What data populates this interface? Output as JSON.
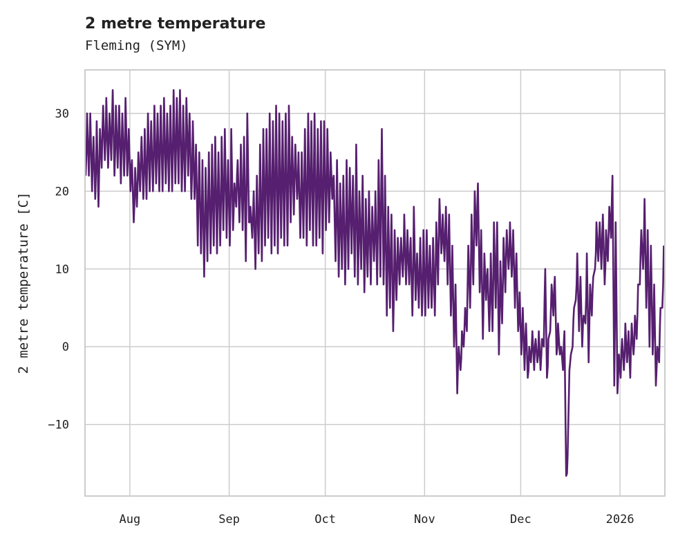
{
  "chart_data": {
    "type": "line",
    "title": "2 metre temperature",
    "subtitle": "Fleming (SYM)",
    "xlabel": "",
    "ylabel": "2 metre temperature [C]",
    "x_start": "2025-07-18",
    "x_range": [
      "2025-07-18",
      "2026-01-15"
    ],
    "ylim": [
      -19.2,
      35.6
    ],
    "grid": true,
    "line_color": "#561f6f",
    "x_ticks": [
      {
        "label": "Aug",
        "date": "2025-08-01"
      },
      {
        "label": "Sep",
        "date": "2025-09-01"
      },
      {
        "label": "Oct",
        "date": "2025-10-01"
      },
      {
        "label": "Nov",
        "date": "2025-11-01"
      },
      {
        "label": "Dec",
        "date": "2025-12-01"
      },
      {
        "label": "2026",
        "date": "2026-01-01"
      }
    ],
    "y_ticks": [
      {
        "label": "30",
        "value": 30
      },
      {
        "label": "20",
        "value": 20
      },
      {
        "label": "10",
        "value": 10
      },
      {
        "label": "0",
        "value": 0
      },
      {
        "label": "−10",
        "value": -10
      }
    ],
    "series": [
      {
        "name": "2 metre temperature",
        "daily_low": [
          22,
          22,
          20,
          19,
          18,
          23,
          24,
          23,
          24,
          22,
          23,
          21,
          22,
          22,
          20,
          16,
          18,
          20,
          19,
          19,
          20,
          20,
          21,
          20,
          20,
          21,
          20,
          20,
          21,
          21,
          20,
          20,
          22,
          19,
          19,
          13,
          12,
          9,
          11,
          12,
          13,
          12,
          13,
          15,
          14,
          13,
          15,
          18,
          16,
          15,
          11,
          16,
          14,
          10,
          12,
          11,
          13,
          14,
          12,
          13,
          12,
          14,
          13,
          13,
          16,
          17,
          19,
          14,
          14,
          13,
          15,
          13,
          13,
          14,
          12,
          15,
          16,
          19,
          11,
          9,
          10,
          8,
          10,
          12,
          9,
          8,
          10,
          7,
          9,
          8,
          11,
          8,
          9,
          8,
          4,
          5,
          2,
          6,
          8,
          9,
          8,
          8,
          4,
          6,
          5,
          4,
          4,
          5,
          5,
          4,
          8,
          12,
          11,
          8,
          4,
          0,
          -6,
          -3,
          0,
          2,
          5,
          8,
          13,
          7,
          1,
          6,
          2,
          2,
          5,
          -1,
          3,
          7,
          10,
          9,
          5,
          2,
          -1,
          -3,
          -4,
          -2,
          -3,
          -2,
          -3,
          0,
          -4,
          2,
          4,
          -1,
          -1,
          -3,
          -16.6,
          -3,
          0,
          6,
          2,
          0,
          3,
          -2,
          4,
          10,
          11,
          10,
          8,
          11,
          14,
          -5,
          -6,
          -4,
          -3,
          -2,
          -4,
          -1,
          1,
          8,
          10,
          5,
          0,
          -1,
          -5,
          -2,
          5,
          1
        ],
        "daily_high": [
          30,
          30,
          27,
          29,
          28,
          31,
          32,
          30,
          33,
          31,
          31,
          30,
          32,
          28,
          24,
          23,
          25,
          27,
          28,
          30,
          29,
          31,
          30,
          31,
          32,
          30,
          31,
          33,
          32,
          33,
          31,
          32,
          30,
          29,
          26,
          25,
          24,
          23,
          25,
          26,
          27,
          25,
          27,
          28,
          24,
          28,
          21,
          24,
          26,
          27,
          30,
          18,
          20,
          22,
          26,
          28,
          28,
          30,
          29,
          31,
          30,
          29,
          30,
          31,
          27,
          26,
          25,
          25,
          28,
          30,
          29,
          30,
          28,
          29,
          29,
          28,
          25,
          22,
          24,
          21,
          22,
          24,
          23,
          22,
          26,
          20,
          22,
          19,
          20,
          18,
          20,
          24,
          28,
          22,
          18,
          17,
          15,
          14,
          14,
          17,
          15,
          14,
          18,
          12,
          14,
          15,
          15,
          13,
          14,
          16,
          19,
          17,
          18,
          17,
          13,
          8,
          0,
          2,
          5,
          13,
          17,
          20,
          21,
          15,
          12,
          10,
          12,
          16,
          16,
          11,
          14,
          15,
          16,
          15,
          12,
          7,
          5,
          3,
          0,
          2,
          1,
          2,
          1,
          10,
          1,
          8,
          9,
          3,
          0,
          2,
          -14,
          -1,
          5,
          12,
          9,
          4,
          12,
          8,
          9,
          16,
          16,
          17,
          15,
          18,
          22,
          16,
          -1,
          1,
          3,
          2,
          3,
          4,
          8,
          15,
          19,
          15,
          13,
          8,
          0,
          5,
          13,
          10
        ]
      }
    ]
  }
}
